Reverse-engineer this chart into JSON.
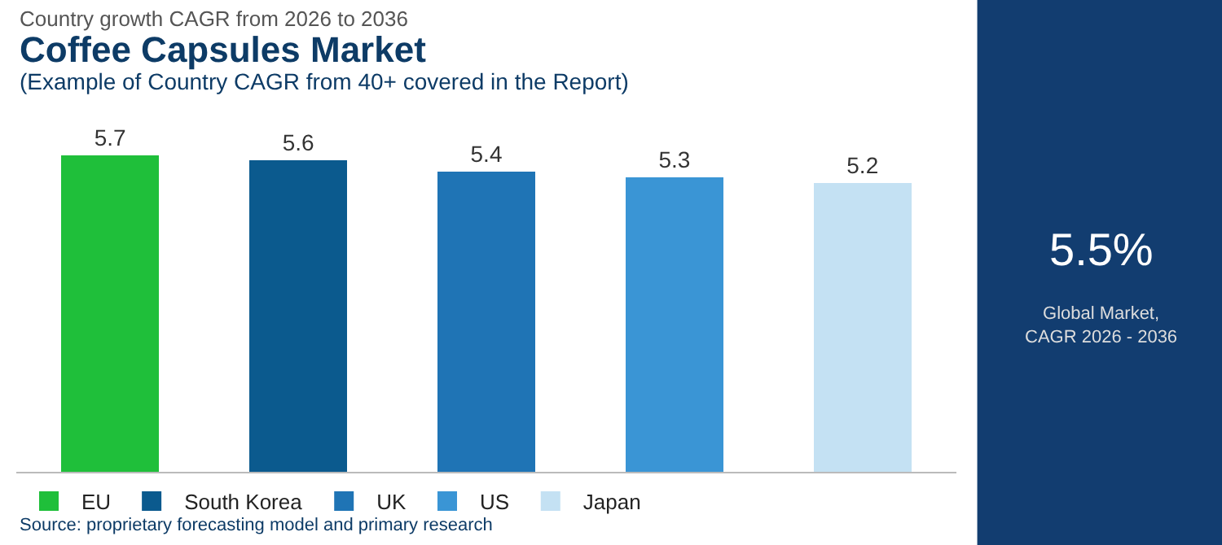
{
  "chart_data": {
    "type": "bar",
    "title": "Coffee Capsules Market",
    "subtitle": "(Example of Country CAGR from 40+ covered in the Report)",
    "categories": [
      null,
      null,
      null,
      null,
      null
    ],
    "series": [
      {
        "name": "EU",
        "color": "#1fbf3a",
        "values": [
          5.7,
          null,
          null,
          null,
          null
        ]
      },
      {
        "name": "South Korea",
        "color": "#0b5a8e",
        "values": [
          null,
          5.6,
          null,
          null,
          null
        ]
      },
      {
        "name": "UK",
        "color": "#1f74b5",
        "values": [
          null,
          null,
          5.4,
          null,
          null
        ]
      },
      {
        "name": "US",
        "color": "#3a95d5",
        "values": [
          null,
          null,
          null,
          5.3,
          null
        ]
      },
      {
        "name": "Japan",
        "color": "#c4e1f3",
        "values": [
          null,
          null,
          null,
          null,
          5.2
        ]
      }
    ],
    "stacked": true,
    "tick_labels": false,
    "data_labels": true,
    "legend": "bottom",
    "annotations": [
      "Country growth CAGR from 2026 to 2036",
      "5.5%",
      "Global Market,\nCAGR 2026 - 2036",
      "Source: proprietary forecasting model and primary research"
    ]
  }
}
